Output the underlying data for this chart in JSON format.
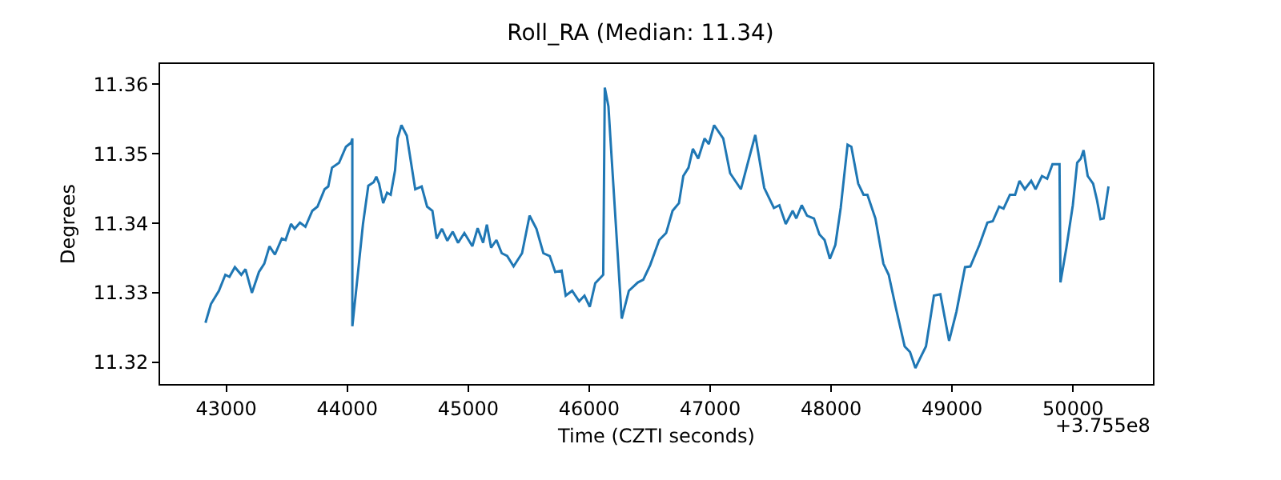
{
  "chart_data": {
    "type": "line",
    "title": "Roll_RA (Median: 11.34)",
    "xlabel": "Time (CZTI seconds)",
    "ylabel": "Degrees",
    "annotations": [
      "+3.755e8"
    ],
    "xlim": [
      42453,
      50660
    ],
    "ylim": [
      11.3169,
      11.3629
    ],
    "xticks": [
      43000,
      44000,
      45000,
      46000,
      47000,
      48000,
      49000,
      50000
    ],
    "yticks": [
      {
        "value": 11.32,
        "label": "11.32"
      },
      {
        "value": 11.33,
        "label": "11.33"
      },
      {
        "value": 11.34,
        "label": "11.34"
      },
      {
        "value": 11.35,
        "label": "11.35"
      },
      {
        "value": 11.36,
        "label": "11.36"
      }
    ],
    "grid": false,
    "marker": "none",
    "line_style": "solid",
    "series": [
      {
        "color": "#1f77b4",
        "x": [
          42828,
          42873,
          42939,
          42992,
          43026,
          43071,
          43124,
          43159,
          43212,
          43270,
          43314,
          43357,
          43402,
          43459,
          43490,
          43535,
          43565,
          43609,
          43654,
          43711,
          43754,
          43813,
          43843,
          43874,
          43932,
          43989,
          44032,
          44042,
          44042,
          44085,
          44130,
          44174,
          44218,
          44240,
          44263,
          44297,
          44329,
          44359,
          44395,
          44416,
          44448,
          44492,
          44562,
          44615,
          44660,
          44704,
          44739,
          44783,
          44827,
          44872,
          44916,
          44968,
          45034,
          45078,
          45123,
          45154,
          45189,
          45233,
          45277,
          45322,
          45375,
          45445,
          45507,
          45564,
          45621,
          45674,
          45719,
          45772,
          45806,
          45859,
          45917,
          45961,
          46005,
          46050,
          46116,
          46129,
          46159,
          46269,
          46328,
          46402,
          46447,
          46504,
          46579,
          46636,
          46689,
          46742,
          46778,
          46821,
          46857,
          46901,
          46954,
          46989,
          47033,
          47108,
          47165,
          47254,
          47307,
          47373,
          47447,
          47527,
          47572,
          47625,
          47682,
          47712,
          47757,
          47801,
          47858,
          47903,
          47946,
          47990,
          48035,
          48079,
          48136,
          48167,
          48224,
          48268,
          48300,
          48366,
          48432,
          48476,
          48533,
          48608,
          48652,
          48697,
          48741,
          48784,
          48850,
          48903,
          48975,
          49036,
          49107,
          49151,
          49226,
          49292,
          49336,
          49389,
          49425,
          49478,
          49521,
          49557,
          49601,
          49654,
          49690,
          49743,
          49786,
          49830,
          49888,
          49896,
          49945,
          49998,
          50034,
          50064,
          50087,
          50121,
          50166,
          50197,
          50227,
          50253,
          50293
        ],
        "values": [
          11.3257,
          11.3284,
          11.3303,
          11.3326,
          11.3323,
          11.3337,
          11.3326,
          11.3334,
          11.33,
          11.333,
          11.3342,
          11.3367,
          11.3355,
          11.3378,
          11.3376,
          11.3399,
          11.3392,
          11.3401,
          11.3395,
          11.3418,
          11.3424,
          11.3449,
          11.3453,
          11.348,
          11.3487,
          11.351,
          11.3516,
          11.3522,
          11.3252,
          11.3323,
          11.3399,
          11.3454,
          11.3459,
          11.3467,
          11.3457,
          11.3429,
          11.3444,
          11.3441,
          11.3476,
          11.3522,
          11.3541,
          11.3526,
          11.3449,
          11.3453,
          11.3424,
          11.3418,
          11.3378,
          11.3392,
          11.3375,
          11.3388,
          11.3372,
          11.3386,
          11.3367,
          11.3393,
          11.3372,
          11.3398,
          11.3365,
          11.3376,
          11.3357,
          11.3353,
          11.3338,
          11.3357,
          11.3411,
          11.3392,
          11.3357,
          11.3353,
          11.333,
          11.3332,
          11.3296,
          11.3303,
          11.3288,
          11.3296,
          11.328,
          11.3314,
          11.3326,
          11.3595,
          11.3568,
          11.3263,
          11.3303,
          11.3315,
          11.3319,
          11.334,
          11.3376,
          11.3386,
          11.3418,
          11.3429,
          11.3468,
          11.348,
          11.3507,
          11.3493,
          11.3522,
          11.3514,
          11.3541,
          11.3522,
          11.3472,
          11.3449,
          11.3484,
          11.3527,
          11.3451,
          11.3422,
          11.3426,
          11.3399,
          11.3418,
          11.3407,
          11.3426,
          11.3411,
          11.3407,
          11.3384,
          11.3376,
          11.3349,
          11.3369,
          11.3422,
          11.3513,
          11.351,
          11.3457,
          11.3441,
          11.3441,
          11.3407,
          11.3342,
          11.3326,
          11.328,
          11.3223,
          11.3215,
          11.3192,
          11.3208,
          11.3223,
          11.3296,
          11.3298,
          11.3231,
          11.3273,
          11.3337,
          11.3338,
          11.3369,
          11.3401,
          11.3403,
          11.3424,
          11.3421,
          11.3441,
          11.3441,
          11.3461,
          11.3449,
          11.3461,
          11.3449,
          11.3468,
          11.3464,
          11.3485,
          11.3485,
          11.3315,
          11.3365,
          11.3426,
          11.3487,
          11.3493,
          11.3505,
          11.3468,
          11.3457,
          11.3434,
          11.3406,
          11.3407,
          11.3453
        ]
      }
    ]
  }
}
